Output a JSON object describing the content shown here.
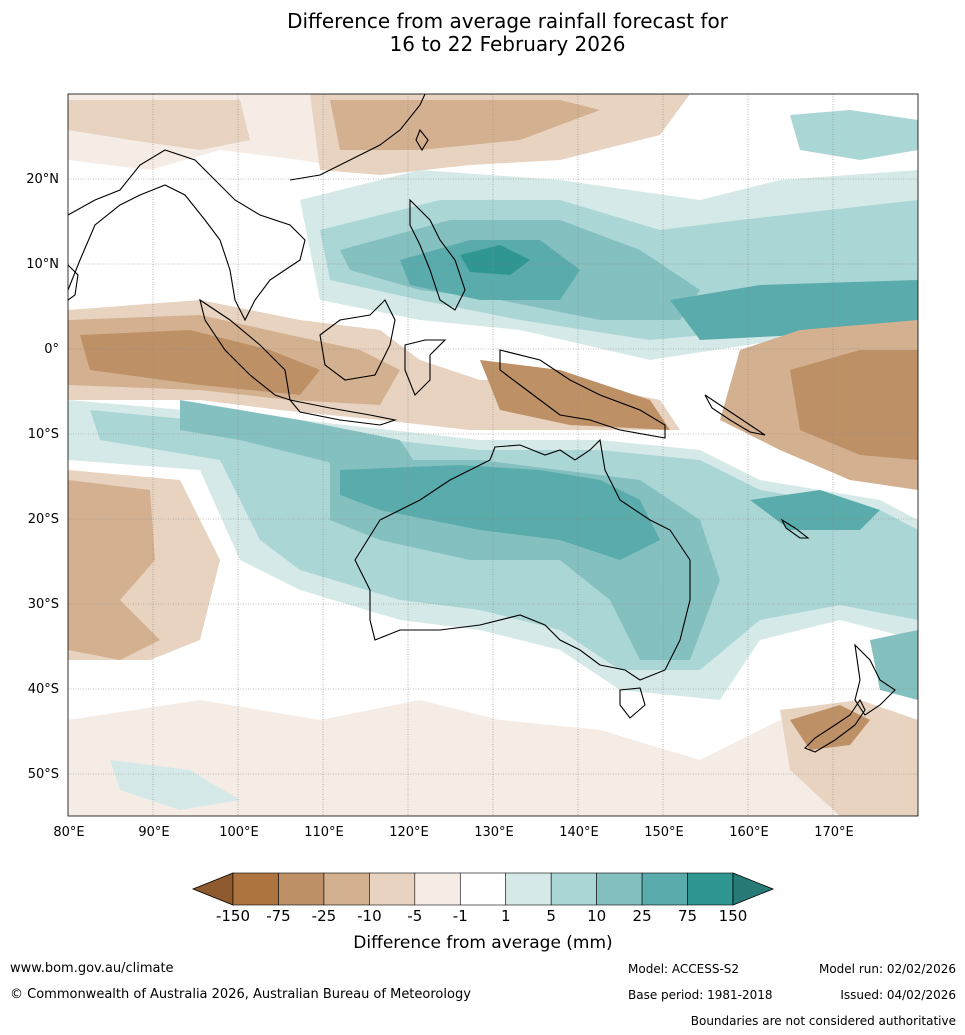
{
  "title": {
    "line1": "Difference from average rainfall forecast for",
    "line2": "16 to 22 February 2026"
  },
  "map": {
    "lon_ticks": [
      "80°E",
      "90°E",
      "100°E",
      "110°E",
      "120°E",
      "130°E",
      "140°E",
      "150°E",
      "160°E",
      "170°E"
    ],
    "lat_ticks": [
      "20°N",
      "10°N",
      "0°",
      "10°S",
      "20°S",
      "30°S",
      "40°S",
      "50°S"
    ],
    "extent": {
      "lon_min": 80,
      "lon_max": 180,
      "lat_min": -55,
      "lat_max": 30
    }
  },
  "colorbar": {
    "tick_labels": [
      "-150",
      "-75",
      "-25",
      "-10",
      "-5",
      "-1",
      "1",
      "5",
      "10",
      "25",
      "75",
      "150"
    ],
    "label": "Difference from average (mm)",
    "colors": [
      "#8f5a2e",
      "#ad7440",
      "#be9066",
      "#d3b08f",
      "#e7d3c0",
      "#f5ece6",
      "#ffffff",
      "#d5eae8",
      "#aad6d5",
      "#84c0c0",
      "#5aabab",
      "#2f9691",
      "#277a76"
    ]
  },
  "footer": {
    "url": "www.bom.gov.au/climate",
    "copyright": "© Commonwealth of Australia 2026, Australian Bureau of Meteorology",
    "model": "Model: ACCESS-S2",
    "base_period": "Base period: 1981-2018",
    "model_run": "Model run: 02/02/2026",
    "issued": "Issued: 04/02/2026",
    "disclaimer": "Boundaries are not considered authoritative"
  }
}
